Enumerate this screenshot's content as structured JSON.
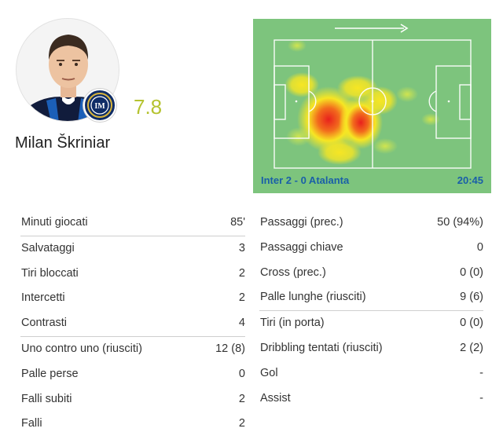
{
  "player": {
    "name": "Milan Škriniar",
    "rating": "7.8",
    "photo_icon": "player-photo",
    "club_icon": "inter-badge"
  },
  "heatmap": {
    "score": "Inter 2 - 0 Atalanta",
    "minute": "20:45",
    "direction_icon": "arrow-right-icon",
    "colors": {
      "pitch": "#7dc47d",
      "hot": "#e8211d",
      "warm": "#f7e623",
      "text": "#1a5fa8"
    }
  },
  "stats_left": [
    {
      "label": "Minuti giocati",
      "value": "85'"
    },
    {
      "label": "Salvataggi",
      "value": "3"
    },
    {
      "label": "Tiri bloccati",
      "value": "2"
    },
    {
      "label": "Intercetti",
      "value": "2"
    },
    {
      "label": "Contrasti",
      "value": "4"
    },
    {
      "label": "Uno contro uno (riusciti)",
      "value": "12 (8)"
    },
    {
      "label": "Palle perse",
      "value": "0"
    },
    {
      "label": "Falli subiti",
      "value": "2"
    },
    {
      "label": "Falli",
      "value": "2"
    }
  ],
  "stats_right": [
    {
      "label": "Passaggi (prec.)",
      "value": "50 (94%)"
    },
    {
      "label": "Passaggi chiave",
      "value": "0"
    },
    {
      "label": "Cross (prec.)",
      "value": "0 (0)"
    },
    {
      "label": "Palle lunghe (riusciti)",
      "value": "9 (6)"
    },
    {
      "label": "Tiri (in porta)",
      "value": "0 (0)"
    },
    {
      "label": "Dribbling tentati (riusciti)",
      "value": "2 (2)"
    },
    {
      "label": "Gol",
      "value": "-"
    },
    {
      "label": "Assist",
      "value": "-"
    }
  ]
}
